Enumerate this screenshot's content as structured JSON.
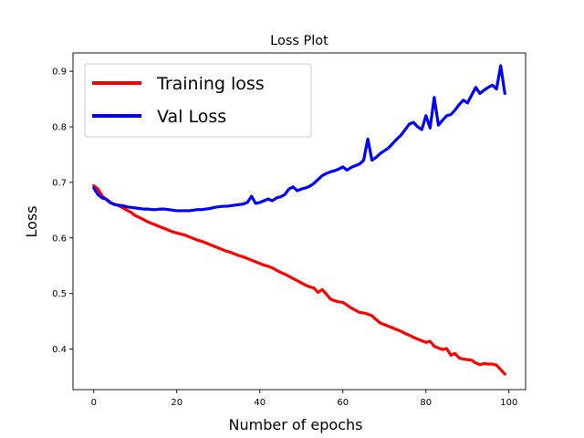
{
  "chart_data": {
    "type": "line",
    "title": "Loss Plot",
    "xlabel": "Number of epochs",
    "ylabel": "Loss",
    "xlim": [
      -5,
      104
    ],
    "ylim": [
      0.327,
      0.933
    ],
    "xticks": [
      0,
      20,
      40,
      60,
      80,
      100
    ],
    "yticks": [
      0.4,
      0.5,
      0.6,
      0.7,
      0.8,
      0.9
    ],
    "xtick_labels": [
      "0",
      "20",
      "40",
      "60",
      "80",
      "100"
    ],
    "ytick_labels": [
      "0.4",
      "0.5",
      "0.6",
      "0.7",
      "0.8",
      "0.9"
    ],
    "grid": false,
    "legend_position": "top-left",
    "series": [
      {
        "name": "Training loss",
        "color": "#ff0000",
        "x": [
          0,
          1,
          2,
          3,
          4,
          5,
          6,
          7,
          8,
          9,
          10,
          11,
          12,
          13,
          14,
          15,
          16,
          17,
          18,
          19,
          20,
          21,
          22,
          23,
          24,
          25,
          26,
          27,
          28,
          29,
          30,
          31,
          32,
          33,
          34,
          35,
          36,
          37,
          38,
          39,
          40,
          41,
          42,
          43,
          44,
          45,
          46,
          47,
          48,
          49,
          50,
          51,
          52,
          53,
          54,
          55,
          56,
          57,
          58,
          59,
          60,
          61,
          62,
          63,
          64,
          65,
          66,
          67,
          68,
          69,
          70,
          71,
          72,
          73,
          74,
          75,
          76,
          77,
          78,
          79,
          80,
          81,
          82,
          83,
          84,
          85,
          86,
          87,
          88,
          89,
          90,
          91,
          92,
          93,
          94,
          95,
          96,
          97,
          98,
          99
        ],
        "values": [
          0.694,
          0.688,
          0.676,
          0.669,
          0.663,
          0.661,
          0.658,
          0.654,
          0.65,
          0.646,
          0.64,
          0.637,
          0.633,
          0.629,
          0.626,
          0.623,
          0.62,
          0.617,
          0.614,
          0.611,
          0.609,
          0.607,
          0.605,
          0.602,
          0.599,
          0.596,
          0.594,
          0.591,
          0.588,
          0.585,
          0.582,
          0.579,
          0.576,
          0.574,
          0.571,
          0.568,
          0.566,
          0.563,
          0.56,
          0.557,
          0.554,
          0.551,
          0.549,
          0.546,
          0.542,
          0.538,
          0.535,
          0.531,
          0.527,
          0.523,
          0.519,
          0.515,
          0.512,
          0.51,
          0.502,
          0.507,
          0.499,
          0.49,
          0.487,
          0.485,
          0.484,
          0.479,
          0.474,
          0.47,
          0.466,
          0.465,
          0.463,
          0.46,
          0.453,
          0.447,
          0.444,
          0.441,
          0.438,
          0.435,
          0.432,
          0.428,
          0.425,
          0.421,
          0.418,
          0.415,
          0.412,
          0.414,
          0.405,
          0.402,
          0.399,
          0.401,
          0.389,
          0.392,
          0.384,
          0.382,
          0.381,
          0.38,
          0.375,
          0.372,
          0.374,
          0.373,
          0.373,
          0.371,
          0.363,
          0.355
        ]
      },
      {
        "name": "Val Loss",
        "color": "#0000ff",
        "x": [
          0,
          1,
          2,
          3,
          4,
          5,
          6,
          7,
          8,
          9,
          10,
          11,
          12,
          13,
          14,
          15,
          16,
          17,
          18,
          19,
          20,
          21,
          22,
          23,
          24,
          25,
          26,
          27,
          28,
          29,
          30,
          31,
          32,
          33,
          34,
          35,
          36,
          37,
          38,
          39,
          40,
          41,
          42,
          43,
          44,
          45,
          46,
          47,
          48,
          49,
          50,
          51,
          52,
          53,
          54,
          55,
          56,
          57,
          58,
          59,
          60,
          61,
          62,
          63,
          64,
          65,
          66,
          67,
          68,
          69,
          70,
          71,
          72,
          73,
          74,
          75,
          76,
          77,
          78,
          79,
          80,
          81,
          82,
          83,
          84,
          85,
          86,
          87,
          88,
          89,
          90,
          91,
          92,
          93,
          94,
          95,
          96,
          97,
          98,
          99
        ],
        "values": [
          0.69,
          0.678,
          0.672,
          0.67,
          0.664,
          0.66,
          0.659,
          0.658,
          0.656,
          0.655,
          0.654,
          0.653,
          0.652,
          0.652,
          0.651,
          0.651,
          0.652,
          0.652,
          0.651,
          0.65,
          0.649,
          0.649,
          0.649,
          0.649,
          0.65,
          0.651,
          0.651,
          0.652,
          0.653,
          0.655,
          0.656,
          0.657,
          0.657,
          0.658,
          0.659,
          0.66,
          0.661,
          0.664,
          0.675,
          0.662,
          0.664,
          0.667,
          0.67,
          0.667,
          0.672,
          0.674,
          0.678,
          0.688,
          0.692,
          0.685,
          0.688,
          0.69,
          0.693,
          0.698,
          0.705,
          0.712,
          0.716,
          0.719,
          0.721,
          0.724,
          0.728,
          0.722,
          0.727,
          0.73,
          0.733,
          0.74,
          0.778,
          0.74,
          0.745,
          0.752,
          0.757,
          0.762,
          0.77,
          0.778,
          0.785,
          0.795,
          0.805,
          0.808,
          0.8,
          0.795,
          0.82,
          0.798,
          0.853,
          0.803,
          0.812,
          0.82,
          0.822,
          0.83,
          0.84,
          0.848,
          0.843,
          0.857,
          0.871,
          0.86,
          0.866,
          0.871,
          0.875,
          0.868,
          0.91,
          0.86
        ]
      }
    ]
  }
}
